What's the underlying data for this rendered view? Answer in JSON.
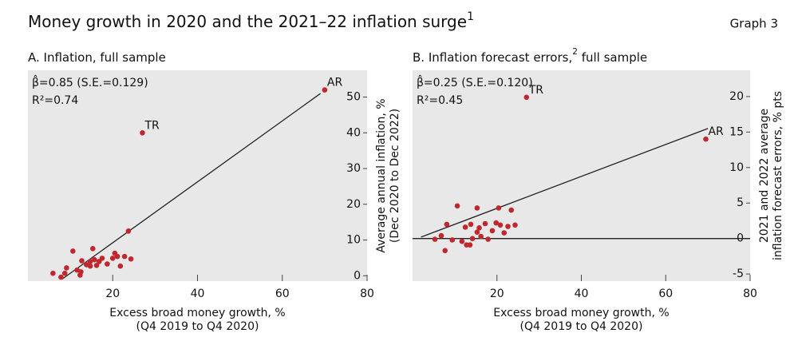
{
  "header": {
    "title": [
      "Money growth in 2020 and the 2021–22 inflation surge",
      "1"
    ],
    "graph_label": "Graph 3"
  },
  "chart_data": [
    {
      "type": "scatter",
      "title": [
        "A. Inflation, full sample"
      ],
      "annotations": [
        "β̂=0.85 (S.E.=0.129)",
        "R²=0.74"
      ],
      "x_label": [
        "Excess broad money growth, %",
        "(Q4 2019 to Q4 2020)"
      ],
      "y_label": [
        "Average annual inflation, %",
        "(Dec 2020 to Dec 2022)"
      ],
      "xlim": [
        0,
        80
      ],
      "xticks": [
        20,
        40,
        60,
        80
      ],
      "ylim": [
        -1.5,
        57.5
      ],
      "yticks": [
        0,
        10,
        20,
        30,
        40,
        50
      ],
      "color": "#c0282d",
      "background": "#e8e8e8",
      "zero_line": false,
      "x": [
        70,
        27,
        5.9,
        7.8,
        8.7,
        9.1,
        10.6,
        11.6,
        12.3,
        12.7,
        13.8,
        14.7,
        15.3,
        15.7,
        16.2,
        16.8,
        17.5,
        18.7,
        20,
        20.5,
        21.1,
        22.8,
        21.8,
        23.7,
        24.3,
        12.5,
        14.7
      ],
      "y": [
        52,
        40,
        0.7,
        -0.4,
        0.7,
        2.2,
        6.9,
        1.6,
        0.2,
        4.2,
        3.1,
        4.0,
        7.6,
        4.5,
        2.9,
        4.0,
        4.9,
        3.3,
        4.9,
        6.3,
        5.4,
        5.4,
        2.7,
        12.5,
        4.7,
        1.1,
        2.7
      ],
      "point_labels": [
        "AR",
        "TR",
        null,
        null,
        null,
        null,
        null,
        null,
        null,
        null,
        null,
        null,
        null,
        null,
        null,
        null,
        null,
        null,
        null,
        null,
        null,
        null,
        null,
        null,
        null,
        null,
        null
      ],
      "fit": {
        "x": [
          8,
          69
        ],
        "y": [
          -1,
          51
        ]
      }
    },
    {
      "type": "scatter",
      "title": [
        "B. Inflation forecast errors,",
        "2",
        " full sample"
      ],
      "annotations": [
        "β̂=0.25 (S.E.=0.120)",
        "R²=0.45"
      ],
      "x_label": [
        "Excess broad money growth, %",
        "(Q4 2019 to Q4 2020)"
      ],
      "y_label": [
        "2021 and 2022 average",
        "inflation forecast errors, % pts"
      ],
      "xlim": [
        0,
        80
      ],
      "xticks": [
        20,
        40,
        60,
        80
      ],
      "ylim": [
        -6,
        23.7
      ],
      "yticks": [
        -5,
        0,
        5,
        10,
        15,
        20
      ],
      "color": "#c0282d",
      "background": "#e8e8e8",
      "zero_line": true,
      "x": [
        69.5,
        27,
        5.3,
        6.8,
        8.1,
        7.7,
        9.4,
        10.6,
        11.7,
        12.5,
        12.8,
        13.6,
        13.8,
        14.2,
        15.3,
        15.3,
        15.8,
        16.2,
        17.2,
        17.9,
        18.9,
        19.8,
        20.4,
        20.8,
        21.7,
        22.6,
        23.4,
        24.3
      ],
      "y": [
        14.0,
        19.9,
        -0.1,
        0.4,
        2.0,
        -1.7,
        -0.2,
        4.6,
        -0.4,
        1.6,
        -0.9,
        -0.9,
        2.0,
        0,
        0.9,
        4.3,
        1.5,
        0.3,
        2.1,
        -0.1,
        1.1,
        2.2,
        4.3,
        1.9,
        0.8,
        1.7,
        4.0,
        1.9
      ],
      "point_labels": [
        "AR",
        "TR",
        null,
        null,
        null,
        null,
        null,
        null,
        null,
        null,
        null,
        null,
        null,
        null,
        null,
        null,
        null,
        null,
        null,
        null,
        null,
        null,
        null,
        null,
        null,
        null,
        null,
        null
      ],
      "fit": {
        "x": [
          2,
          70
        ],
        "y": [
          0.2,
          15.5
        ]
      }
    }
  ]
}
